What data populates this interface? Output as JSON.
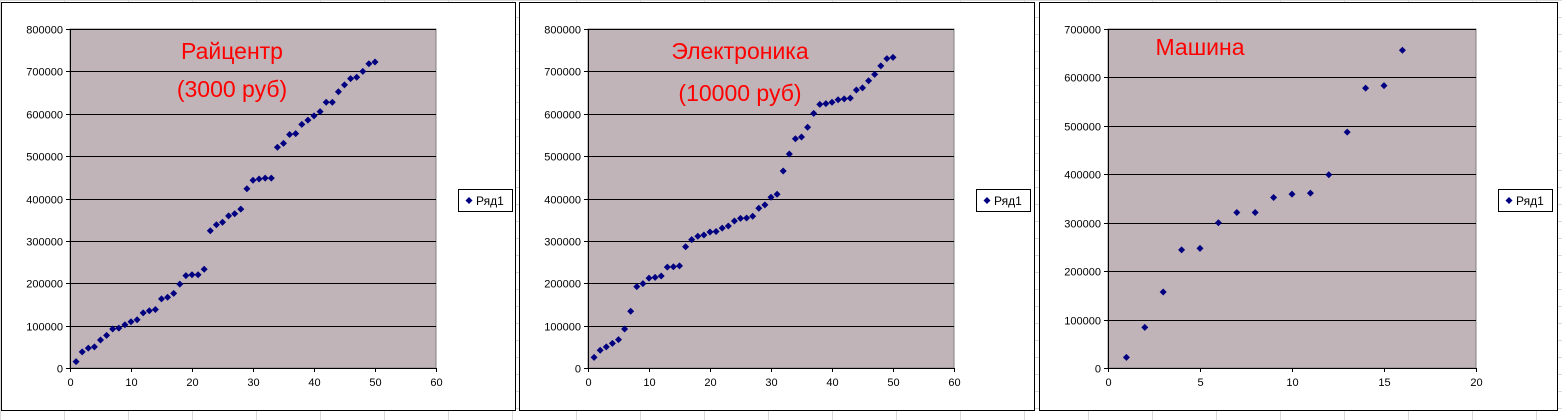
{
  "chart_data": [
    {
      "type": "scatter",
      "title_lines": [
        "Райцентр",
        "(3000 руб)"
      ],
      "legend": "Ряд1",
      "legend_placement": "right",
      "marker_color": "#000080",
      "plot_color": "#c0b4b8",
      "title_color": "#ff0000",
      "xlim": [
        0,
        60
      ],
      "ylim": [
        0,
        800000
      ],
      "x_ticks": [
        "0",
        "10",
        "20",
        "30",
        "40",
        "50",
        "60"
      ],
      "y_ticks": [
        "0",
        "100000",
        "200000",
        "300000",
        "400000",
        "500000",
        "600000",
        "700000",
        "800000"
      ],
      "grid": "horizontal",
      "series": [
        {
          "name": "Ряд1",
          "x": [
            1,
            2,
            3,
            4,
            5,
            6,
            7,
            8,
            9,
            10,
            11,
            12,
            13,
            14,
            15,
            16,
            17,
            18,
            19,
            20,
            21,
            22,
            23,
            24,
            25,
            26,
            27,
            28,
            29,
            30,
            31,
            32,
            33,
            34,
            35,
            36,
            37,
            38,
            39,
            40,
            41,
            42,
            43,
            44,
            45,
            46,
            47,
            48,
            49,
            50
          ],
          "y": [
            15000,
            38000,
            47000,
            50000,
            66000,
            77000,
            92000,
            94000,
            102000,
            109000,
            114000,
            130000,
            135000,
            138000,
            163000,
            167000,
            176000,
            198000,
            218000,
            220000,
            220000,
            233000,
            324000,
            338000,
            344000,
            359000,
            364000,
            375000,
            423000,
            443000,
            446000,
            448000,
            448000,
            521000,
            530000,
            551000,
            553000,
            575000,
            585000,
            595000,
            605000,
            627000,
            627000,
            652000,
            668000,
            683000,
            686000,
            700000,
            718000,
            722000
          ]
        }
      ]
    },
    {
      "type": "scatter",
      "title_lines": [
        "Электроника",
        "(10000 руб)"
      ],
      "legend": "Ряд1",
      "legend_placement": "right",
      "marker_color": "#000080",
      "plot_color": "#c0b4b8",
      "title_color": "#ff0000",
      "xlim": [
        0,
        60
      ],
      "ylim": [
        0,
        800000
      ],
      "x_ticks": [
        "0",
        "10",
        "20",
        "30",
        "40",
        "50",
        "60"
      ],
      "y_ticks": [
        "0",
        "100000",
        "200000",
        "300000",
        "400000",
        "500000",
        "600000",
        "700000",
        "800000"
      ],
      "grid": "horizontal",
      "series": [
        {
          "name": "Ряд1",
          "x": [
            1,
            2,
            3,
            4,
            5,
            6,
            7,
            8,
            9,
            10,
            11,
            12,
            13,
            14,
            15,
            16,
            17,
            18,
            19,
            20,
            21,
            22,
            23,
            24,
            25,
            26,
            27,
            28,
            29,
            30,
            31,
            32,
            33,
            34,
            35,
            36,
            37,
            38,
            39,
            40,
            41,
            42,
            43,
            44,
            45,
            46,
            47,
            48,
            49,
            50
          ],
          "y": [
            25000,
            42000,
            50000,
            58000,
            67000,
            92000,
            134000,
            192000,
            199000,
            212000,
            214000,
            217000,
            238000,
            239000,
            241000,
            286000,
            303000,
            311000,
            314000,
            321000,
            322000,
            330000,
            335000,
            347000,
            353000,
            354000,
            358000,
            377000,
            385000,
            403000,
            410000,
            465000,
            505000,
            541000,
            545000,
            568000,
            601000,
            622000,
            624000,
            627000,
            633000,
            635000,
            637000,
            656000,
            661000,
            678000,
            693000,
            713000,
            730000,
            733000
          ]
        }
      ]
    },
    {
      "type": "scatter",
      "title_lines": [
        "Машина"
      ],
      "legend": "Ряд1",
      "legend_placement": "right",
      "marker_color": "#000080",
      "plot_color": "#c0b4b8",
      "title_color": "#ff0000",
      "xlim": [
        0,
        20
      ],
      "ylim": [
        0,
        700000
      ],
      "x_ticks": [
        "0",
        "5",
        "10",
        "15",
        "20"
      ],
      "y_ticks": [
        "0",
        "100000",
        "200000",
        "300000",
        "400000",
        "500000",
        "600000",
        "700000"
      ],
      "grid": "horizontal",
      "series": [
        {
          "name": "Ряд1",
          "x": [
            1,
            2,
            3,
            4,
            5,
            6,
            7,
            8,
            9,
            10,
            11,
            12,
            13,
            14,
            15,
            16
          ],
          "y": [
            22000,
            84000,
            157000,
            244000,
            247000,
            300000,
            321000,
            321000,
            352000,
            359000,
            361000,
            399000,
            487000,
            578000,
            583000,
            656000
          ]
        }
      ]
    }
  ]
}
